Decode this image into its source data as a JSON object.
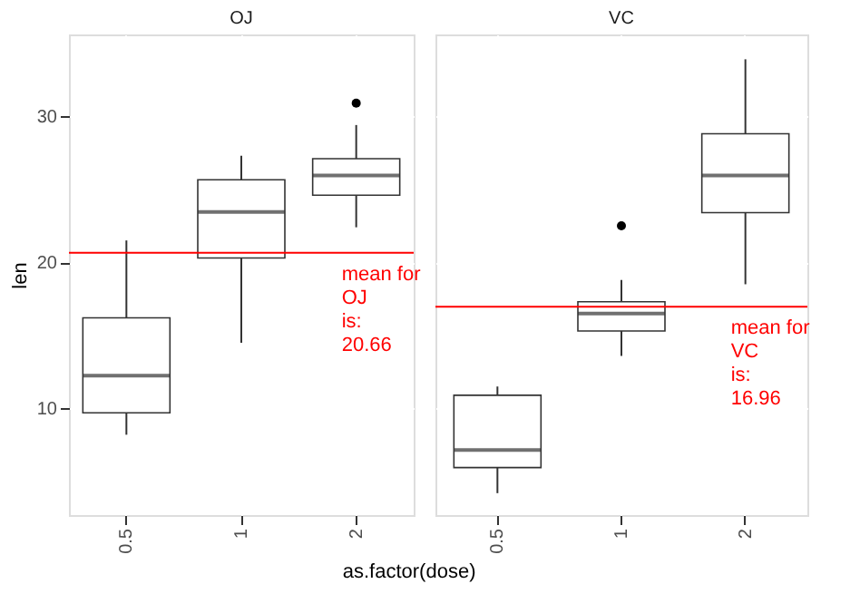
{
  "chart_data": [
    {
      "type": "box",
      "title": "OJ",
      "xlabel": "as.factor(dose)",
      "ylabel": "len",
      "categories": [
        "0.5",
        "1",
        "2"
      ],
      "boxes": [
        {
          "low": 8.2,
          "q1": 9.7,
          "median": 12.25,
          "q3": 16.2,
          "high": 21.5
        },
        {
          "low": 14.5,
          "q1": 20.3,
          "median": 23.45,
          "q3": 25.65,
          "high": 27.3
        },
        {
          "low": 22.4,
          "q1": 24.6,
          "median": 25.95,
          "q3": 27.1,
          "high": 29.4,
          "outliers": [
            30.9
          ]
        }
      ],
      "color": "#ffffff",
      "ylim": [
        2.7,
        35.6
      ],
      "yticks": [
        10,
        20,
        30
      ],
      "grid": true,
      "ref_lines": [
        {
          "axis": "y",
          "value": 20.66,
          "color": "#ff0000"
        }
      ],
      "annotations": [
        {
          "text": "mean for\nOJ\nis:\n20.66",
          "x": "2",
          "y": 20.66
        }
      ]
    },
    {
      "type": "box",
      "title": "VC",
      "categories": [
        "0.5",
        "1",
        "2"
      ],
      "boxes": [
        {
          "low": 4.2,
          "q1": 5.95,
          "median": 7.15,
          "q3": 10.9,
          "high": 11.5
        },
        {
          "low": 13.6,
          "q1": 15.3,
          "median": 16.5,
          "q3": 17.3,
          "high": 18.8,
          "outliers": [
            22.5
          ]
        },
        {
          "low": 18.5,
          "q1": 23.4,
          "median": 25.95,
          "q3": 28.8,
          "high": 33.9
        }
      ],
      "color": "#ffffff",
      "ylim": [
        2.7,
        35.6
      ],
      "yticks": [
        10,
        20,
        30
      ],
      "grid": true,
      "tick_labels": "x",
      "ref_lines": [
        {
          "axis": "y",
          "value": 16.96,
          "color": "#ff0000"
        }
      ],
      "annotations": [
        {
          "text": "mean for\nVC\nis:\n16.96",
          "x": "2",
          "y": 16.96
        }
      ]
    }
  ]
}
